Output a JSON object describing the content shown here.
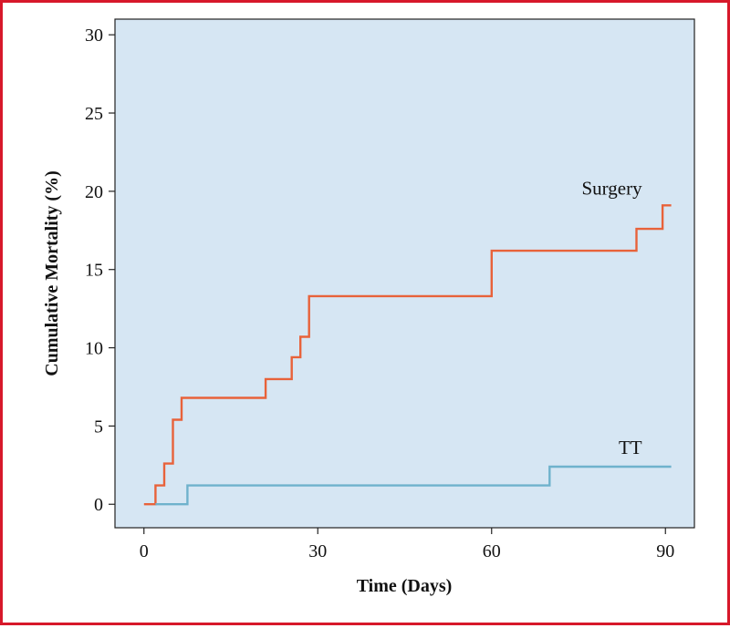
{
  "chart_data": {
    "type": "line",
    "step": true,
    "title": "",
    "xlabel": "Time (Days)",
    "ylabel": "Cumulative Mortality (%)",
    "xlim": [
      -5,
      95
    ],
    "ylim": [
      -1.5,
      31
    ],
    "x_ticks": [
      0,
      30,
      60,
      90
    ],
    "y_ticks": [
      0,
      5,
      10,
      15,
      20,
      25,
      30
    ],
    "grid": false,
    "plot_background": "#d6e6f3",
    "frame_border_color": "#d7182a",
    "series": [
      {
        "name": "Surgery",
        "color": "#e8623a",
        "points": [
          [
            0,
            0
          ],
          [
            2,
            0
          ],
          [
            2,
            1.2
          ],
          [
            3.5,
            1.2
          ],
          [
            3.5,
            2.6
          ],
          [
            5,
            2.6
          ],
          [
            5,
            5.4
          ],
          [
            6.5,
            5.4
          ],
          [
            6.5,
            6.8
          ],
          [
            21,
            6.8
          ],
          [
            21,
            8.0
          ],
          [
            25.5,
            8.0
          ],
          [
            25.5,
            9.4
          ],
          [
            27,
            9.4
          ],
          [
            27,
            10.7
          ],
          [
            28.5,
            10.7
          ],
          [
            28.5,
            13.3
          ],
          [
            60,
            13.3
          ],
          [
            60,
            16.2
          ],
          [
            85,
            16.2
          ],
          [
            85,
            17.6
          ],
          [
            89.5,
            17.6
          ],
          [
            89.5,
            19.1
          ],
          [
            91,
            19.1
          ]
        ]
      },
      {
        "name": "TT",
        "color": "#6fb2cc",
        "points": [
          [
            2,
            0
          ],
          [
            7.5,
            0
          ],
          [
            7.5,
            1.2
          ],
          [
            70,
            1.2
          ],
          [
            70,
            2.4
          ],
          [
            91,
            2.4
          ]
        ]
      }
    ]
  }
}
